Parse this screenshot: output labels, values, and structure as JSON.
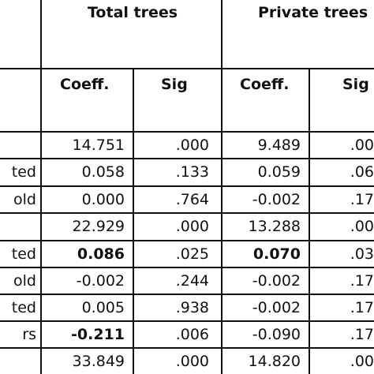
{
  "table": {
    "group_headers": [
      "Total trees",
      "Private trees"
    ],
    "column_headers": [
      "Coeff.",
      "Sig",
      "Coeff.",
      "Sig"
    ],
    "rows": [
      {
        "label": "",
        "cells": [
          "14.751",
          ".000",
          "9.489",
          ".00"
        ],
        "bold": [
          false,
          false,
          false,
          false
        ]
      },
      {
        "label": "ted",
        "cells": [
          "0.058",
          ".133",
          "0.059",
          ".06"
        ],
        "bold": [
          false,
          false,
          false,
          false
        ]
      },
      {
        "label": "old",
        "cells": [
          "0.000",
          ".764",
          "-0.002",
          ".17"
        ],
        "bold": [
          false,
          false,
          false,
          false
        ]
      },
      {
        "label": "",
        "cells": [
          "22.929",
          ".000",
          "13.288",
          ".00"
        ],
        "bold": [
          false,
          false,
          false,
          false
        ]
      },
      {
        "label": "ted",
        "cells": [
          "0.086",
          ".025",
          "0.070",
          ".03"
        ],
        "bold": [
          true,
          false,
          true,
          false
        ]
      },
      {
        "label": "old",
        "cells": [
          "-0.002",
          ".244",
          "-0.002",
          ".17"
        ],
        "bold": [
          false,
          false,
          false,
          false
        ]
      },
      {
        "label": "ted",
        "cells": [
          "0.005",
          ".938",
          "-0.002",
          ".17"
        ],
        "bold": [
          false,
          false,
          false,
          false
        ]
      },
      {
        "label": "rs",
        "cells": [
          "-0.211",
          ".006",
          "-0.090",
          ".17"
        ],
        "bold": [
          true,
          false,
          false,
          false
        ]
      },
      {
        "label": "",
        "cells": [
          "33.849",
          ".000",
          "14.820",
          ".00"
        ],
        "bold": [
          false,
          false,
          false,
          false
        ]
      }
    ]
  }
}
